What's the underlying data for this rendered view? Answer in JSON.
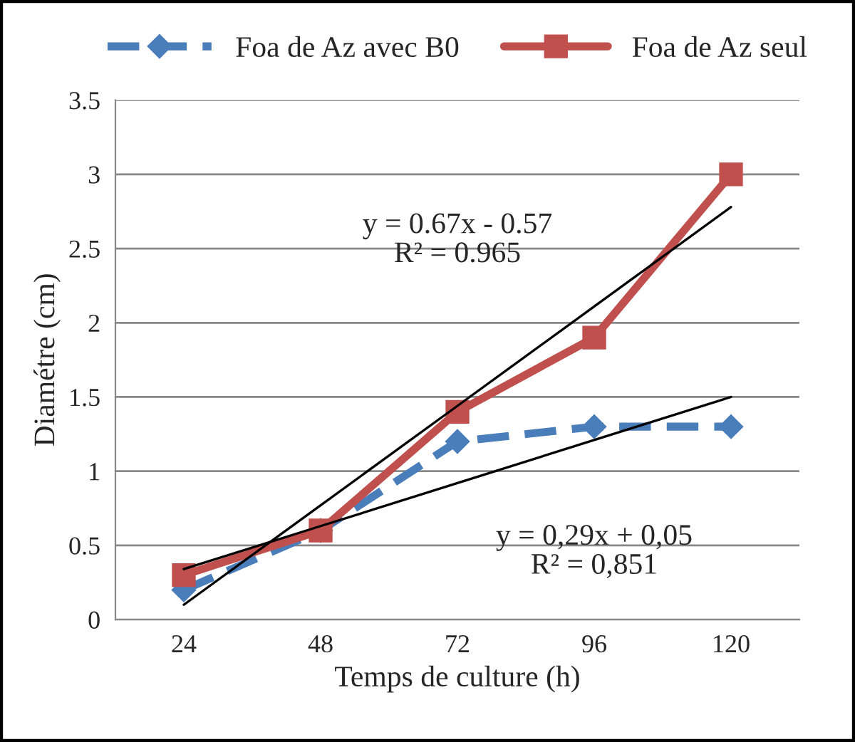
{
  "chart_data": {
    "type": "line",
    "xlabel": "Temps de culture (h)",
    "ylabel": "Diamétre (cm)",
    "categories": [
      "24",
      "48",
      "72",
      "96",
      "120"
    ],
    "series": [
      {
        "name": "Foa de Az avec B0",
        "color": "#4a7ebb",
        "values": [
          0.2,
          0.6,
          1.2,
          1.3,
          1.3
        ],
        "marker": "diamond",
        "line_style": "dashed"
      },
      {
        "name": "Foa de Az seul",
        "color": "#c0504d",
        "values": [
          0.3,
          0.6,
          1.4,
          1.9,
          3.0
        ],
        "marker": "square",
        "line_style": "solid"
      },
      {
        "color": "#000000",
        "values": [
          0.1,
          0.77,
          1.44,
          2.11,
          2.78
        ],
        "marker": "none",
        "line_style": "solid"
      },
      {
        "color": "#000000",
        "values": [
          0.34,
          0.63,
          0.92,
          1.21,
          1.5
        ],
        "marker": "none",
        "line_style": "solid"
      }
    ],
    "ylim": [
      0,
      3.5
    ],
    "yticks": [
      0,
      0.5,
      1,
      1.5,
      2,
      2.5,
      3,
      3.5
    ],
    "grid": "y",
    "legend": "top",
    "annotations": [
      "y = 0.67x - 0.57\nR² = 0.965",
      "y = 0,29x + 0,05\nR² = 0,851"
    ]
  }
}
